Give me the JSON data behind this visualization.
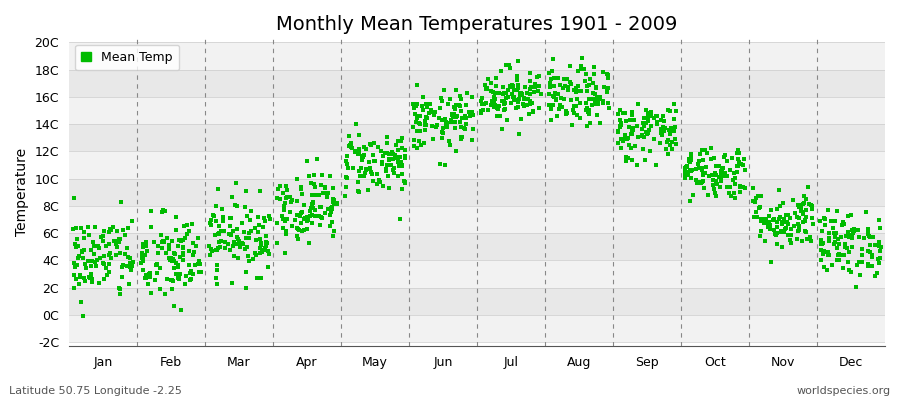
{
  "title": "Monthly Mean Temperatures 1901 - 2009",
  "ylabel": "Temperature",
  "ylim_min": -2,
  "ylim_max": 20,
  "ytick_labels": [
    "-2C",
    "0C",
    "2C",
    "4C",
    "6C",
    "8C",
    "10C",
    "12C",
    "14C",
    "16C",
    "18C",
    "20C"
  ],
  "ytick_values": [
    -2,
    0,
    2,
    4,
    6,
    8,
    10,
    12,
    14,
    16,
    18,
    20
  ],
  "months": [
    "Jan",
    "Feb",
    "Mar",
    "Apr",
    "May",
    "Jun",
    "Jul",
    "Aug",
    "Sep",
    "Oct",
    "Nov",
    "Dec"
  ],
  "month_means": [
    4.2,
    4.0,
    5.8,
    8.0,
    11.2,
    14.2,
    16.2,
    16.0,
    13.5,
    10.5,
    7.0,
    5.2
  ],
  "month_stds": [
    1.6,
    1.7,
    1.4,
    1.3,
    1.2,
    1.1,
    1.0,
    1.1,
    1.1,
    1.0,
    1.1,
    1.2
  ],
  "n_years": 109,
  "random_seed": 42,
  "dot_color": "#00bb00",
  "dot_size": 5,
  "fig_bg_color": "#ffffff",
  "plot_bg_color": "#ffffff",
  "band_colors": [
    "#f2f2f2",
    "#e8e8e8"
  ],
  "vline_color": "#888888",
  "hline_color": "#cccccc",
  "legend_label": "Mean Temp",
  "bottom_left": "Latitude 50.75 Longitude -2.25",
  "bottom_right": "worldspecies.org",
  "title_fontsize": 14,
  "axis_label_fontsize": 10,
  "tick_fontsize": 9,
  "annotation_fontsize": 8
}
